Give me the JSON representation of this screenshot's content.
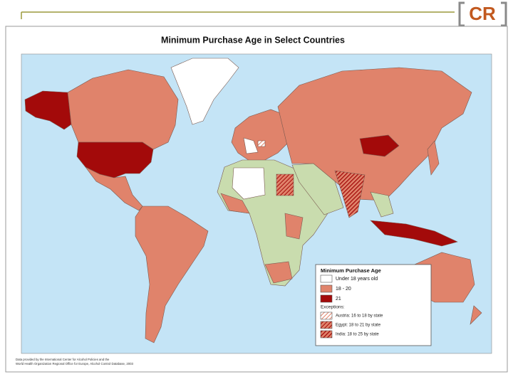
{
  "logo": "CR",
  "map": {
    "title": "Minimum Purchase Age in Select Countries",
    "ocean_color": "#c4e4f6",
    "other_color": "#c9dcae",
    "legend": {
      "title": "Minimum Purchase Age",
      "items": [
        {
          "label": "Under 18 years old",
          "color": "#ffffff"
        },
        {
          "label": "18 - 20",
          "color": "#e0836b"
        },
        {
          "label": "21",
          "color": "#a30a0a"
        }
      ],
      "exceptions_title": "Exceptions:",
      "exceptions": [
        {
          "label": "Austria: 16 to 18 by state"
        },
        {
          "label": "Egypt: 18 to 21 by state"
        },
        {
          "label": "India: 18 to 25 by state"
        }
      ]
    },
    "source": [
      "Data provided by the International Center for Alcohol Policies and the",
      "World Health Organization Regional Office for Europe, Alcohol Control Database, 2003"
    ]
  }
}
